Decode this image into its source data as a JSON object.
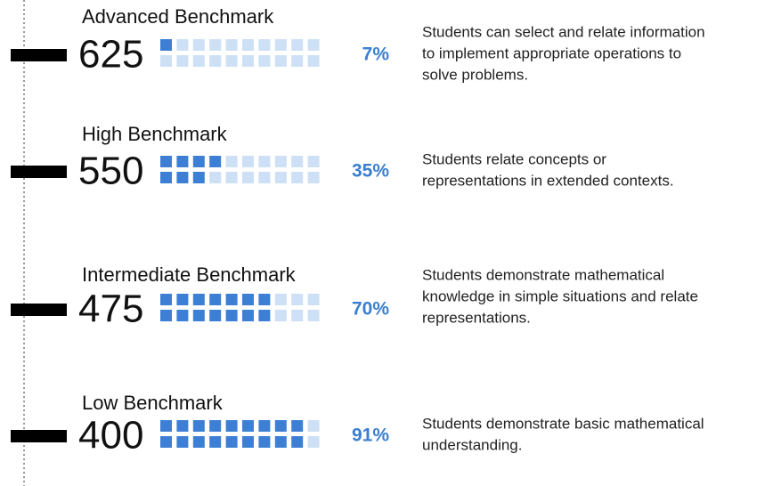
{
  "chart_data": {
    "type": "waffle",
    "categories": [
      "Advanced Benchmark",
      "High Benchmark",
      "Intermediate Benchmark",
      "Low Benchmark"
    ],
    "scores": [
      625,
      550,
      475,
      400
    ],
    "values": [
      7,
      35,
      70,
      91
    ],
    "value_labels": [
      "7%",
      "35%",
      "70%",
      "91%"
    ],
    "color": "#3d7fd4",
    "empty_color": "#cde0f5",
    "descriptions": [
      [
        "Students can select and relate information",
        "to implement appropriate operations to",
        "solve problems."
      ],
      [
        "Students relate concepts or",
        "representations in extended contexts."
      ],
      [
        "Students demonstrate mathematical",
        "knowledge in simple situations and relate",
        "representations."
      ],
      [
        "Students demonstrate basic mathematical",
        "understanding."
      ]
    ]
  }
}
